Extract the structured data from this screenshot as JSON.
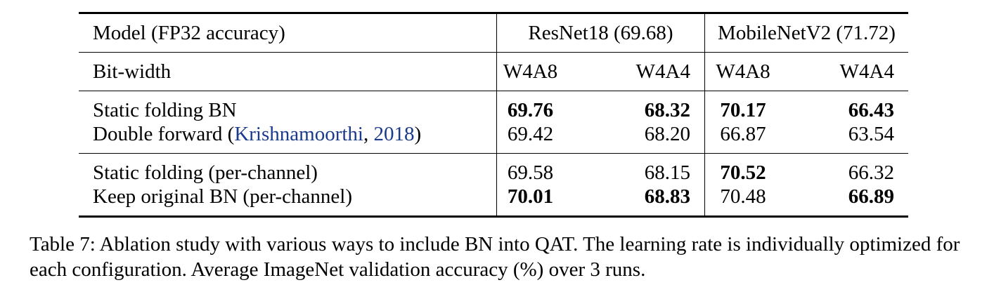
{
  "table": {
    "header_row1": {
      "label": "Model (FP32 accuracy)",
      "resnet": "ResNet18 (69.68)",
      "mobilenet": "MobileNetV2 (71.72)"
    },
    "header_row2": {
      "label": "Bit-width",
      "cols": [
        "W4A8",
        "W4A4",
        "W4A8",
        "W4A4"
      ]
    },
    "rows": [
      {
        "label": "Static folding BN",
        "values": [
          "69.76",
          "68.32",
          "70.17",
          "66.43"
        ],
        "bold": [
          true,
          true,
          true,
          true
        ]
      },
      {
        "label_prefix": "Double forward (",
        "cite_author": "Krishnamoorthi",
        "cite_sep": ", ",
        "cite_year": "2018",
        "label_suffix": ")",
        "values": [
          "69.42",
          "68.20",
          "66.87",
          "63.54"
        ],
        "bold": [
          false,
          false,
          false,
          false
        ]
      },
      {
        "label": "Static folding (per-channel)",
        "values": [
          "69.58",
          "68.15",
          "70.52",
          "66.32"
        ],
        "bold": [
          false,
          false,
          true,
          false
        ]
      },
      {
        "label": "Keep original BN (per-channel)",
        "values": [
          "70.01",
          "68.83",
          "70.48",
          "66.89"
        ],
        "bold": [
          true,
          true,
          false,
          true
        ]
      }
    ]
  },
  "caption": {
    "text": "Table 7: Ablation study with various ways to include BN into QAT. The learning rate is individually optimized for each configuration. Average ImageNet validation accuracy (%) over 3 runs."
  },
  "colors": {
    "citation": "#1a3a8c"
  }
}
